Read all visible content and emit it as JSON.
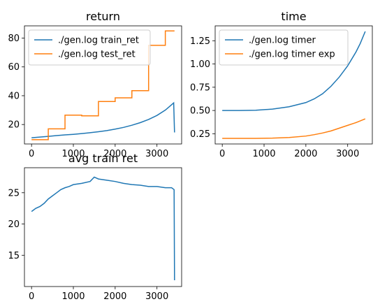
{
  "chart_data": [
    {
      "type": "line",
      "title": "return",
      "xlabel": "",
      "ylabel": "",
      "xlim": [
        -170,
        3590
      ],
      "ylim": [
        6.5,
        88.5
      ],
      "xticks": [
        0,
        1000,
        2000,
        3000
      ],
      "yticks": [
        20,
        40,
        60,
        80
      ],
      "legend": "top-left",
      "grid": false,
      "series": [
        {
          "name": "./gen.log train_ret",
          "color": "#1f77b4",
          "x": [
            0,
            200,
            400,
            600,
            800,
            1000,
            1200,
            1400,
            1600,
            1800,
            2000,
            2200,
            2400,
            2600,
            2800,
            3000,
            3200,
            3300,
            3400,
            3420
          ],
          "y": [
            10.8,
            11.3,
            11.8,
            12.3,
            12.8,
            13.2,
            13.7,
            14.3,
            15.0,
            15.8,
            16.8,
            18.0,
            19.5,
            21.3,
            23.5,
            26.3,
            30.0,
            32.5,
            35.0,
            14.5
          ]
        },
        {
          "name": "./gen.log test_ret",
          "color": "#ff7f0e",
          "x": [
            0,
            400,
            400,
            800,
            800,
            1200,
            1200,
            1600,
            1600,
            2000,
            2000,
            2400,
            2400,
            2800,
            2800,
            3200,
            3200,
            3420
          ],
          "y": [
            9.5,
            9.5,
            17.0,
            17.0,
            26.5,
            26.5,
            26.0,
            26.0,
            36.0,
            36.0,
            38.5,
            38.5,
            43.5,
            43.5,
            75.0,
            75.0,
            85.0,
            85.0
          ]
        }
      ]
    },
    {
      "type": "line",
      "title": "time",
      "xlabel": "",
      "ylabel": "",
      "xlim": [
        -170,
        3590
      ],
      "ylim": [
        0.14,
        1.41
      ],
      "xticks": [
        0,
        1000,
        2000,
        3000
      ],
      "yticks": [
        0.25,
        0.5,
        0.75,
        1.0,
        1.25
      ],
      "ytick_labels": [
        "0.25",
        "0.50",
        "0.75",
        "1.00",
        "1.25"
      ],
      "legend": "top-left",
      "grid": false,
      "series": [
        {
          "name": "./gen.log timer",
          "color": "#1f77b4",
          "x": [
            0,
            400,
            800,
            1200,
            1600,
            2000,
            2200,
            2400,
            2600,
            2800,
            3000,
            3200,
            3300,
            3420
          ],
          "y": [
            0.5,
            0.5,
            0.503,
            0.515,
            0.54,
            0.585,
            0.625,
            0.68,
            0.76,
            0.86,
            0.98,
            1.13,
            1.22,
            1.35
          ]
        },
        {
          "name": "./gen.log timer exp",
          "color": "#ff7f0e",
          "x": [
            0,
            400,
            800,
            1200,
            1600,
            2000,
            2200,
            2400,
            2600,
            2800,
            3000,
            3200,
            3420
          ],
          "y": [
            0.2,
            0.2,
            0.2,
            0.203,
            0.21,
            0.225,
            0.24,
            0.258,
            0.28,
            0.31,
            0.34,
            0.37,
            0.41
          ]
        }
      ]
    },
    {
      "type": "line",
      "title": "avg train ret",
      "xlabel": "",
      "ylabel": "",
      "xlim": [
        -170,
        3590
      ],
      "ylim": [
        10.0,
        29.0
      ],
      "xticks": [
        0,
        1000,
        2000,
        3000
      ],
      "yticks": [
        15,
        20,
        25
      ],
      "legend": "none",
      "grid": false,
      "series": [
        {
          "name": "",
          "color": "#1f77b4",
          "x": [
            0,
            100,
            200,
            300,
            400,
            500,
            600,
            700,
            800,
            900,
            1000,
            1200,
            1400,
            1500,
            1600,
            1800,
            2000,
            2200,
            2400,
            2600,
            2800,
            3000,
            3200,
            3350,
            3410,
            3420
          ],
          "y": [
            22.0,
            22.5,
            22.8,
            23.3,
            24.0,
            24.5,
            25.0,
            25.5,
            25.8,
            26.0,
            26.3,
            26.5,
            26.8,
            27.5,
            27.2,
            27.0,
            26.8,
            26.5,
            26.3,
            26.2,
            26.0,
            26.0,
            25.8,
            25.8,
            25.5,
            11.0
          ]
        }
      ]
    }
  ]
}
